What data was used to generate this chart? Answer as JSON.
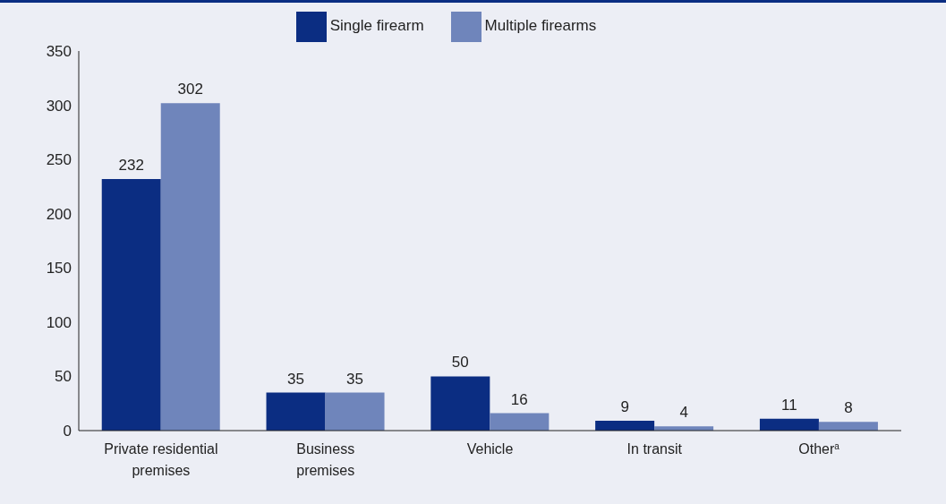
{
  "chart_data": {
    "type": "bar",
    "categories": [
      "Private residential premises",
      "Business premises",
      "Vehicle",
      "In transit",
      "Other$^{a}$"
    ],
    "series": [
      {
        "name": "Single firearm",
        "color": "#0b2d82",
        "values": [
          232,
          35,
          50,
          9,
          11
        ]
      },
      {
        "name": "Multiple firearms",
        "color": "#6f85bb",
        "values": [
          302,
          35,
          16,
          4,
          8
        ]
      }
    ],
    "ylim": [
      0,
      350
    ],
    "yticks": [
      0,
      50,
      100,
      150,
      200,
      250,
      300,
      350
    ],
    "legend": "top",
    "data_labels": true
  }
}
